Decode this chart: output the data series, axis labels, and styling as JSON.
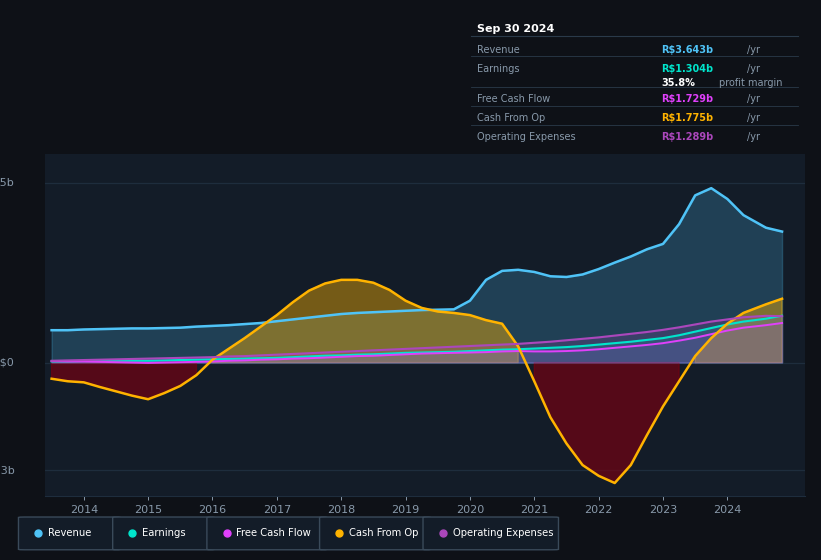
{
  "bg_color": "#0e1117",
  "plot_bg_color": "#131c28",
  "grid_color": "#1e2d3d",
  "rev_color": "#4fc3f7",
  "earn_color": "#00e5cc",
  "fcf_color": "#e040fb",
  "cop_color": "#ffb300",
  "opex_color": "#ab47bc",
  "x_ticks": [
    2014,
    2015,
    2016,
    2017,
    2018,
    2019,
    2020,
    2021,
    2022,
    2023,
    2024
  ],
  "t": [
    2013.5,
    2013.75,
    2014.0,
    2014.25,
    2014.5,
    2014.75,
    2015.0,
    2015.25,
    2015.5,
    2015.75,
    2016.0,
    2016.25,
    2016.5,
    2016.75,
    2017.0,
    2017.25,
    2017.5,
    2017.75,
    2018.0,
    2018.25,
    2018.5,
    2018.75,
    2019.0,
    2019.25,
    2019.5,
    2019.75,
    2020.0,
    2020.25,
    2020.5,
    2020.75,
    2021.0,
    2021.25,
    2021.5,
    2021.75,
    2022.0,
    2022.25,
    2022.5,
    2022.75,
    2023.0,
    2023.25,
    2023.5,
    2023.75,
    2024.0,
    2024.25,
    2024.6,
    2024.85
  ],
  "revenue": [
    0.9,
    0.9,
    0.92,
    0.93,
    0.94,
    0.95,
    0.95,
    0.96,
    0.97,
    1.0,
    1.02,
    1.04,
    1.07,
    1.1,
    1.15,
    1.2,
    1.25,
    1.3,
    1.35,
    1.38,
    1.4,
    1.42,
    1.44,
    1.46,
    1.47,
    1.48,
    1.72,
    2.3,
    2.55,
    2.58,
    2.52,
    2.4,
    2.38,
    2.45,
    2.6,
    2.78,
    2.95,
    3.15,
    3.3,
    3.85,
    4.65,
    4.85,
    4.55,
    4.1,
    3.75,
    3.643
  ],
  "earnings": [
    0.03,
    0.03,
    0.04,
    0.04,
    0.05,
    0.05,
    0.05,
    0.06,
    0.07,
    0.08,
    0.09,
    0.1,
    0.11,
    0.12,
    0.13,
    0.15,
    0.17,
    0.19,
    0.2,
    0.22,
    0.23,
    0.25,
    0.27,
    0.28,
    0.29,
    0.3,
    0.32,
    0.34,
    0.36,
    0.37,
    0.39,
    0.41,
    0.43,
    0.46,
    0.5,
    0.54,
    0.58,
    0.63,
    0.68,
    0.76,
    0.86,
    0.96,
    1.06,
    1.14,
    1.22,
    1.304
  ],
  "free_cf": [
    0.04,
    0.03,
    0.03,
    0.02,
    0.01,
    0.0,
    -0.01,
    0.0,
    0.01,
    0.02,
    0.03,
    0.05,
    0.06,
    0.08,
    0.09,
    0.11,
    0.12,
    0.14,
    0.16,
    0.18,
    0.19,
    0.21,
    0.23,
    0.25,
    0.26,
    0.27,
    0.28,
    0.29,
    0.31,
    0.32,
    0.31,
    0.31,
    0.32,
    0.34,
    0.37,
    0.41,
    0.45,
    0.49,
    0.54,
    0.61,
    0.69,
    0.79,
    0.89,
    0.97,
    1.04,
    1.1
  ],
  "cash_op": [
    -0.45,
    -0.52,
    -0.55,
    -0.68,
    -0.8,
    -0.92,
    -1.02,
    -0.85,
    -0.65,
    -0.35,
    0.08,
    0.38,
    0.68,
    1.0,
    1.32,
    1.68,
    2.0,
    2.2,
    2.3,
    2.3,
    2.22,
    2.02,
    1.72,
    1.52,
    1.42,
    1.38,
    1.32,
    1.18,
    1.08,
    0.45,
    -0.52,
    -1.52,
    -2.25,
    -2.85,
    -3.15,
    -3.35,
    -2.85,
    -2.02,
    -1.22,
    -0.52,
    0.18,
    0.68,
    1.08,
    1.38,
    1.62,
    1.775
  ],
  "op_exp": [
    0.05,
    0.06,
    0.07,
    0.08,
    0.09,
    0.1,
    0.11,
    0.12,
    0.13,
    0.14,
    0.15,
    0.17,
    0.18,
    0.2,
    0.22,
    0.24,
    0.26,
    0.28,
    0.3,
    0.32,
    0.34,
    0.36,
    0.38,
    0.4,
    0.42,
    0.44,
    0.46,
    0.48,
    0.5,
    0.52,
    0.55,
    0.58,
    0.62,
    0.66,
    0.7,
    0.75,
    0.8,
    0.85,
    0.91,
    0.98,
    1.06,
    1.14,
    1.2,
    1.26,
    1.3,
    1.289
  ],
  "ylim": [
    -3.7,
    5.8
  ],
  "xlim": [
    2013.4,
    2025.2
  ],
  "y_label_5b_val": 5.0,
  "y_label_0_val": 0.0,
  "y_label_neg3_val": -3.0
}
